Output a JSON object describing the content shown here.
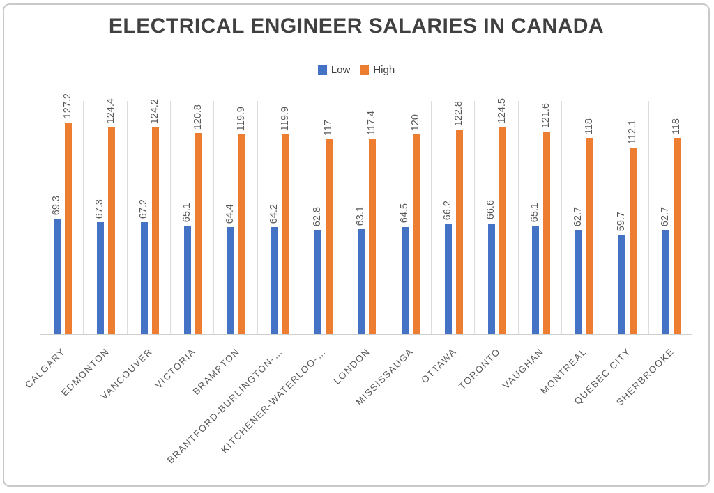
{
  "page": {
    "background": "#ffffff",
    "card_border_color": "#c9c9c9"
  },
  "legend": {
    "low_label": "Low",
    "high_label": "High"
  },
  "chart_data": {
    "type": "bar",
    "title": "ELECTRICAL ENGINEER SALARIES IN CANADA",
    "title_color": "#404040",
    "xlabel": "",
    "ylabel": "",
    "ylim": [
      0,
      140
    ],
    "grid": "vertical-category-separators",
    "gridline_color": "#dcdcdc",
    "axis_line_color": "#cfcfcf",
    "data_label_color": "#595959",
    "category_label_color": "#595959",
    "legend_position": "top-center",
    "data_labels_rotation_deg": 90,
    "category_labels_rotation_deg": -45,
    "categories": [
      "CALGARY",
      "EDMONTON",
      "VANCOUVER",
      "VICTORIA",
      "BRAMPTON",
      "BRANTFORD-BURLINGTON-…",
      "KITCHENER-WATERLOO-…",
      "LONDON",
      "MISSISSAUGA",
      "OTTAWA",
      "TORONTO",
      "VAUGHAN",
      "MONTREAL",
      "QUEBEC CITY",
      "SHERBROOKE"
    ],
    "series": [
      {
        "name": "Low",
        "color": "#4472C4",
        "values": [
          69.3,
          67.3,
          67.2,
          65.1,
          64.4,
          64.2,
          62.8,
          63.1,
          64.5,
          66.2,
          66.6,
          65.1,
          62.7,
          59.7,
          62.7
        ]
      },
      {
        "name": "High",
        "color": "#ED7D31",
        "values": [
          127.2,
          124.4,
          124.2,
          120.8,
          119.9,
          119.9,
          117,
          117.4,
          120,
          122.8,
          124.5,
          121.6,
          118,
          112.1,
          118
        ]
      }
    ]
  }
}
